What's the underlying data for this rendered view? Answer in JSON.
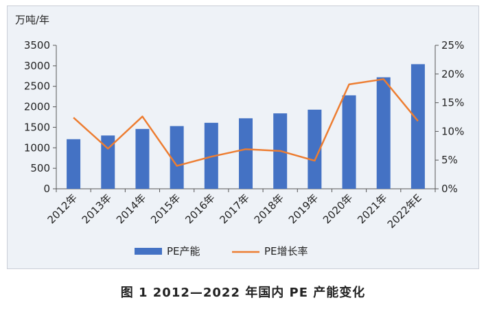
{
  "chart_data": {
    "type": "bar+line",
    "y_unit_label": "万吨/年",
    "categories": [
      "2012年",
      "2013年",
      "2014年",
      "2015年",
      "2016年",
      "2017年",
      "2018年",
      "2019年",
      "2020年",
      "2021年",
      "2022年E"
    ],
    "series": [
      {
        "name": "PE产能",
        "type": "bar",
        "axis": "left",
        "color": "#4472c4",
        "values": [
          1210,
          1300,
          1460,
          1530,
          1610,
          1720,
          1840,
          1930,
          2280,
          2720,
          3040
        ]
      },
      {
        "name": "PE增长率",
        "type": "line",
        "axis": "right",
        "color": "#ed7d31",
        "values": [
          12.4,
          7.0,
          12.6,
          4.0,
          5.6,
          6.9,
          6.6,
          4.9,
          18.2,
          19.1,
          11.8
        ]
      }
    ],
    "left_axis": {
      "ylim": [
        0,
        3500
      ],
      "ticks": [
        0,
        500,
        1000,
        1500,
        2000,
        2500,
        3000,
        3500
      ]
    },
    "right_axis": {
      "ylim": [
        0,
        25
      ],
      "ticks": [
        "0%",
        "5%",
        "10%",
        "15%",
        "20%",
        "25%"
      ]
    },
    "legend_position": "bottom-center",
    "grid": false
  },
  "caption": "图 1  2012—2022 年国内 PE 产能变化"
}
